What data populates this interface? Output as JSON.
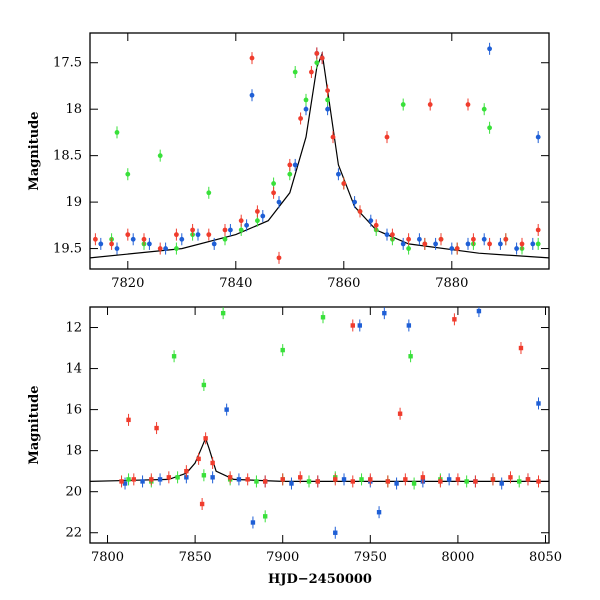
{
  "chart_data": [
    {
      "type": "scatter",
      "panel": "top",
      "title": "",
      "xlabel": "",
      "ylabel": "Magnitude",
      "xlim": [
        7813,
        7898
      ],
      "ylim": [
        19.72,
        17.18
      ],
      "y_inverted": true,
      "x_ticks": [
        7820,
        7840,
        7860,
        7880
      ],
      "y_ticks": [
        17.5,
        18,
        18.5,
        19,
        19.5
      ],
      "series": [
        {
          "color": "#1f5fd6",
          "x": [
            7815,
            7818,
            7821,
            7824,
            7827,
            7830,
            7833,
            7836,
            7839,
            7842,
            7845,
            7848,
            7851,
            7853,
            7855,
            7856,
            7857,
            7859,
            7862,
            7865,
            7868,
            7871,
            7874,
            7877,
            7880,
            7883,
            7886,
            7889,
            7892,
            7895,
            7843,
            7887,
            7896
          ],
          "y": [
            19.45,
            19.5,
            19.4,
            19.45,
            19.5,
            19.4,
            19.35,
            19.45,
            19.3,
            19.25,
            19.15,
            19.0,
            18.6,
            18.0,
            17.4,
            17.45,
            18.0,
            18.7,
            19.0,
            19.2,
            19.35,
            19.45,
            19.4,
            19.45,
            19.5,
            19.45,
            19.4,
            19.45,
            19.5,
            19.45,
            17.85,
            17.35,
            18.3
          ]
        },
        {
          "color": "#39e03a",
          "x": [
            7817,
            7820,
            7823,
            7826,
            7829,
            7832,
            7835,
            7838,
            7841,
            7844,
            7847,
            7850,
            7853,
            7855,
            7857,
            7860,
            7863,
            7866,
            7869,
            7872,
            7875,
            7878,
            7881,
            7884,
            7887,
            7890,
            7893,
            7896,
            7818,
            7851,
            7871,
            7886
          ],
          "y": [
            19.4,
            18.7,
            19.45,
            18.5,
            19.5,
            19.35,
            18.9,
            19.4,
            19.3,
            19.2,
            18.8,
            18.7,
            17.9,
            17.5,
            17.9,
            18.8,
            19.1,
            19.3,
            19.4,
            19.5,
            19.45,
            19.4,
            19.5,
            19.45,
            18.2,
            19.4,
            19.5,
            19.45,
            18.25,
            17.6,
            17.95,
            18.0
          ]
        },
        {
          "color": "#f03c2d",
          "x": [
            7814,
            7817,
            7820,
            7823,
            7826,
            7829,
            7832,
            7835,
            7838,
            7841,
            7844,
            7847,
            7850,
            7852,
            7854,
            7855,
            7856,
            7857,
            7858,
            7860,
            7863,
            7866,
            7869,
            7872,
            7875,
            7878,
            7881,
            7884,
            7887,
            7890,
            7893,
            7896,
            7843,
            7868,
            7876,
            7883,
            7848
          ],
          "y": [
            19.4,
            19.45,
            19.35,
            19.4,
            19.5,
            19.35,
            19.3,
            19.35,
            19.3,
            19.2,
            19.1,
            18.9,
            18.6,
            18.1,
            17.6,
            17.4,
            17.45,
            17.8,
            18.3,
            18.8,
            19.1,
            19.25,
            19.35,
            19.4,
            19.45,
            19.4,
            19.5,
            19.4,
            19.45,
            19.4,
            19.45,
            19.3,
            17.45,
            18.3,
            17.95,
            17.95,
            19.6
          ]
        }
      ],
      "model_line": {
        "color": "#000000",
        "x": [
          7813,
          7830,
          7840,
          7846,
          7850,
          7853,
          7855,
          7856,
          7857,
          7859,
          7862,
          7866,
          7872,
          7885,
          7898
        ],
        "y": [
          19.6,
          19.5,
          19.35,
          19.2,
          18.9,
          18.3,
          17.55,
          17.4,
          17.8,
          18.6,
          19.05,
          19.3,
          19.45,
          19.55,
          19.6
        ]
      }
    },
    {
      "type": "scatter",
      "panel": "bottom",
      "title": "",
      "xlabel": "HJD−2450000",
      "ylabel": "Magnitude",
      "xlim": [
        7790,
        8052
      ],
      "ylim": [
        22.5,
        11.0
      ],
      "y_inverted": true,
      "x_ticks": [
        7800,
        7850,
        7900,
        7950,
        8000,
        8050
      ],
      "y_ticks": [
        12,
        14,
        16,
        18,
        20,
        22
      ],
      "series": [
        {
          "color": "#1f5fd6",
          "x": [
            7810,
            7820,
            7830,
            7845,
            7860,
            7875,
            7890,
            7905,
            7920,
            7935,
            7950,
            7965,
            7980,
            7995,
            8010,
            8025,
            8040,
            7944,
            7958,
            7972,
            8012,
            8046,
            7883,
            7955,
            7868,
            7930
          ],
          "y": [
            19.6,
            19.5,
            19.4,
            19.3,
            19.3,
            19.4,
            19.5,
            19.6,
            19.5,
            19.4,
            19.5,
            19.6,
            19.5,
            19.4,
            19.5,
            19.6,
            19.4,
            11.9,
            11.3,
            11.9,
            11.2,
            15.7,
            21.5,
            21.0,
            16.0,
            22.0
          ]
        },
        {
          "color": "#39e03a",
          "x": [
            7812,
            7825,
            7840,
            7855,
            7870,
            7885,
            7900,
            7915,
            7930,
            7945,
            7960,
            7975,
            7990,
            8005,
            8020,
            8035,
            7838,
            7866,
            7900,
            7923,
            7973,
            7855,
            7890
          ],
          "y": [
            19.4,
            19.5,
            19.3,
            19.2,
            19.4,
            19.5,
            19.4,
            19.5,
            19.3,
            19.4,
            19.5,
            19.6,
            19.4,
            19.5,
            19.4,
            19.5,
            13.4,
            11.3,
            13.1,
            11.5,
            13.4,
            14.8,
            21.2
          ]
        },
        {
          "color": "#f03c2d",
          "x": [
            7808,
            7815,
            7825,
            7835,
            7845,
            7852,
            7856,
            7860,
            7870,
            7880,
            7890,
            7900,
            7910,
            7920,
            7930,
            7940,
            7950,
            7960,
            7970,
            7980,
            7990,
            8000,
            8010,
            8020,
            8030,
            8040,
            8046,
            7812,
            7828,
            7940,
            7967,
            7998,
            8036,
            7854
          ],
          "y": [
            19.5,
            19.4,
            19.4,
            19.3,
            19.0,
            18.4,
            17.4,
            18.6,
            19.3,
            19.4,
            19.5,
            19.4,
            19.3,
            19.5,
            19.4,
            19.5,
            19.4,
            19.5,
            19.4,
            19.3,
            19.5,
            19.4,
            19.5,
            19.4,
            19.3,
            19.4,
            19.5,
            16.5,
            16.9,
            11.9,
            16.2,
            11.6,
            13.0,
            20.6
          ]
        }
      ],
      "model_line": {
        "color": "#000000",
        "x": [
          7790,
          7835,
          7845,
          7850,
          7853,
          7856,
          7858,
          7862,
          7872,
          7900,
          8052
        ],
        "y": [
          19.5,
          19.4,
          19.1,
          18.6,
          18.0,
          17.4,
          17.9,
          19.0,
          19.4,
          19.5,
          19.5
        ]
      }
    }
  ]
}
